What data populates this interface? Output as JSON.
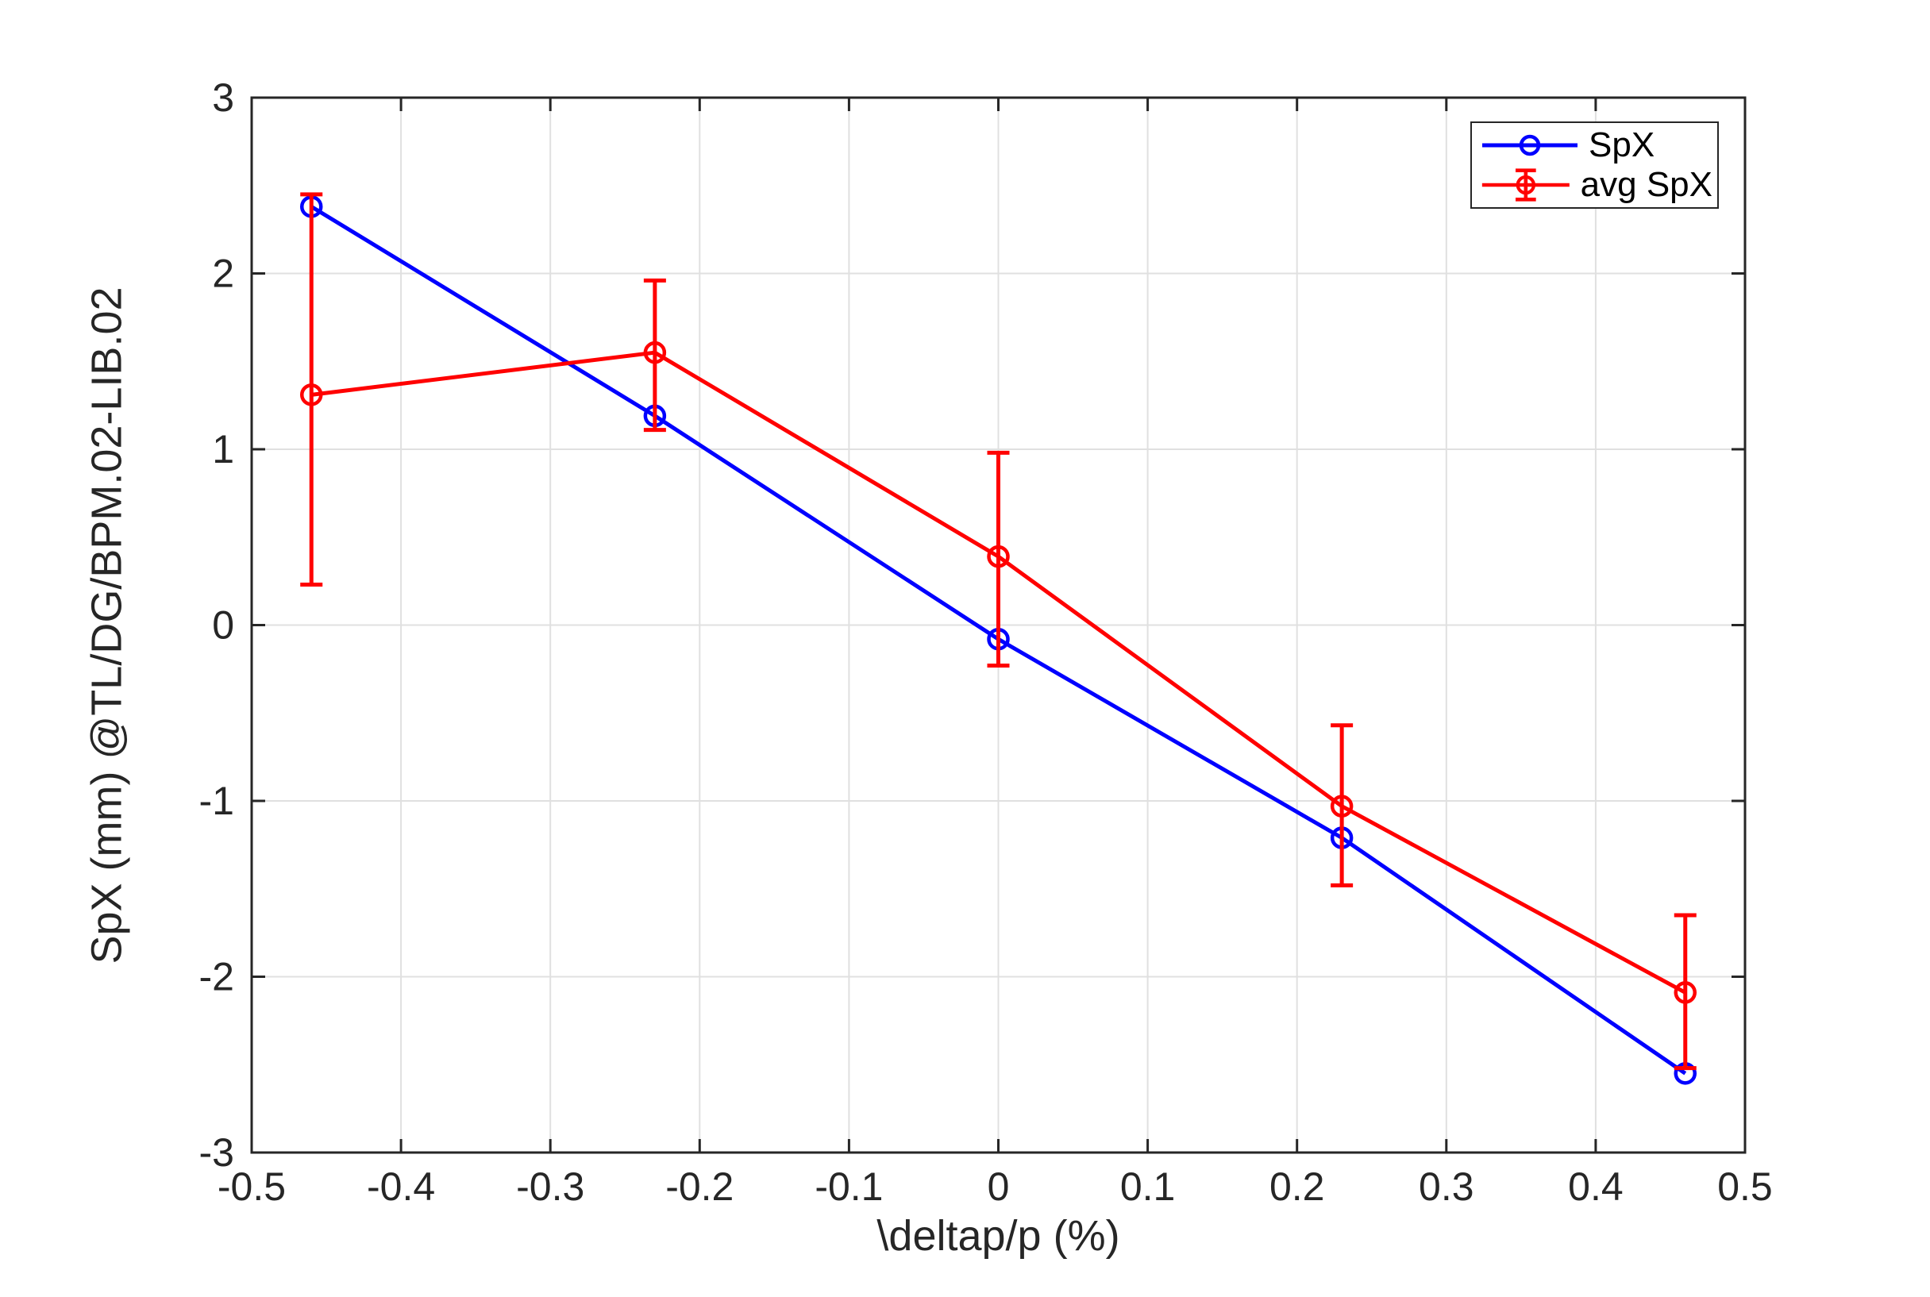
{
  "chart_data": {
    "type": "line",
    "title": "",
    "xlabel": "\\deltap/p (%)",
    "ylabel": "SpX (mm) @TL/DG/BPM.02-LIB.02",
    "xlim": [
      -0.5,
      0.5
    ],
    "ylim": [
      -3,
      3
    ],
    "grid": true,
    "legend_position": "top-right",
    "x_tick_values": [
      -0.5,
      -0.4,
      -0.3,
      -0.2,
      -0.1,
      0,
      0.1,
      0.2,
      0.3,
      0.4,
      0.5
    ],
    "x_tick_labels": [
      "-0.5",
      "-0.4",
      "-0.3",
      "-0.2",
      "-0.1",
      "0",
      "0.1",
      "0.2",
      "0.3",
      "0.4",
      "0.5"
    ],
    "y_tick_values": [
      -3,
      -2,
      -1,
      0,
      1,
      2,
      3
    ],
    "y_tick_labels": [
      "-3",
      "-2",
      "-1",
      "0",
      "1",
      "2",
      "3"
    ],
    "x": [
      -0.46,
      -0.23,
      0,
      0.23,
      0.46
    ],
    "series": [
      {
        "name": "SpX",
        "color": "#0000FF",
        "marker": "circle",
        "values": [
          2.38,
          1.19,
          -0.08,
          -1.21,
          -2.55
        ]
      },
      {
        "name": "avg SpX",
        "color": "#FF0000",
        "marker": "circle",
        "values": [
          1.31,
          1.55,
          0.39,
          -1.03,
          -2.09
        ],
        "error_low": [
          0.23,
          1.11,
          -0.23,
          -1.48,
          -2.52
        ],
        "error_high": [
          2.45,
          1.96,
          0.98,
          -0.57,
          -1.65
        ]
      }
    ],
    "colors": {
      "grid": "#E0E0E0",
      "axis": "#262626",
      "tick_text": "#262626",
      "background": "#FFFFFF"
    }
  }
}
